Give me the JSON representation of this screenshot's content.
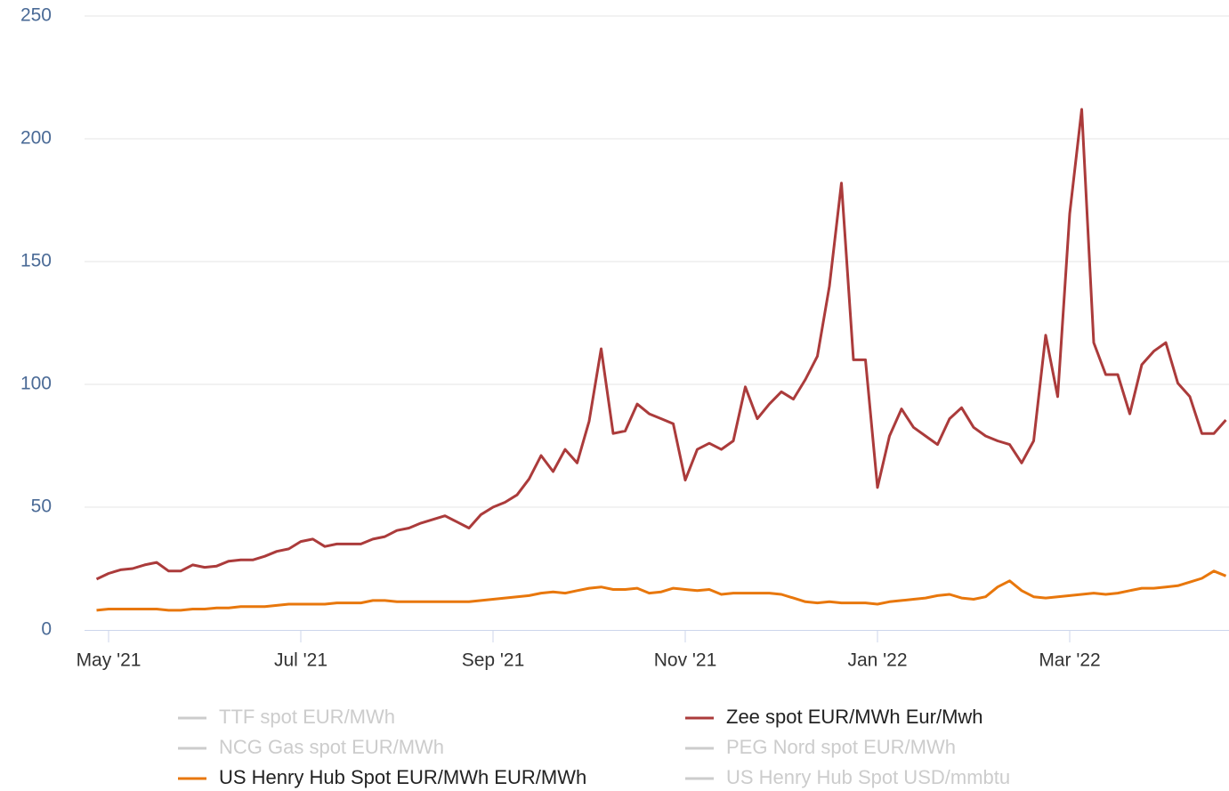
{
  "chart_data": {
    "type": "line",
    "categories": [
      null,
      "May '21",
      null,
      null,
      null,
      null,
      null,
      null,
      null,
      null,
      null,
      null,
      null,
      null,
      null,
      null,
      null,
      "Jul '21",
      null,
      null,
      null,
      null,
      null,
      null,
      null,
      null,
      null,
      null,
      null,
      null,
      null,
      null,
      null,
      "Sep '21",
      null,
      null,
      null,
      null,
      null,
      null,
      null,
      null,
      null,
      null,
      null,
      null,
      null,
      null,
      null,
      "Nov '21",
      null,
      null,
      null,
      null,
      null,
      null,
      null,
      null,
      null,
      null,
      null,
      null,
      null,
      null,
      null,
      "Jan '22",
      null,
      null,
      null,
      null,
      null,
      null,
      null,
      null,
      null,
      null,
      null,
      null,
      null,
      null,
      null,
      "Mar '22",
      null,
      null,
      null,
      null,
      null,
      null,
      null,
      null,
      null,
      null,
      null,
      null,
      null
    ],
    "series": [
      {
        "name": "TTF spot EUR/MWh",
        "visible": false
      },
      {
        "name": "Zee spot EUR/MWh Eur/Mwh",
        "color": "#ab3b3b",
        "visible": true,
        "values": [
          20.7,
          23,
          24.5,
          25,
          26.5,
          27.5,
          24,
          24,
          26.5,
          25.5,
          26,
          28,
          28.5,
          28.5,
          30,
          32,
          33,
          36,
          37,
          34,
          35,
          35,
          35,
          37,
          38,
          40.5,
          41.5,
          43.5,
          45,
          46.5,
          44,
          41.5,
          47,
          50,
          52,
          55,
          61.5,
          71,
          64.5,
          73.5,
          68,
          85,
          114.5,
          80,
          81,
          92,
          88,
          86,
          84,
          61,
          73.5,
          76,
          73.5,
          77,
          99,
          86,
          92,
          97,
          94,
          102,
          111.5,
          140,
          182,
          110,
          110,
          58,
          79,
          90,
          82.5,
          79,
          75.5,
          86,
          90.5,
          82.5,
          79,
          77,
          75.5,
          68,
          77,
          120,
          95,
          169.5,
          212,
          117,
          104,
          104,
          88,
          108,
          113.5,
          117,
          100.5,
          95,
          80,
          80,
          85.5
        ]
      },
      {
        "name": "NCG Gas spot EUR/MWh",
        "visible": false
      },
      {
        "name": "PEG Nord spot EUR/MWh",
        "visible": false
      },
      {
        "name": "US Henry Hub Spot EUR/MWh EUR/MWh",
        "color": "#e8770c",
        "visible": true,
        "values": [
          8,
          8.5,
          8.5,
          8.5,
          8.5,
          8.5,
          8,
          8,
          8.5,
          8.5,
          9,
          9,
          9.5,
          9.5,
          9.5,
          10,
          10.5,
          10.5,
          10.5,
          10.5,
          11,
          11,
          11,
          12,
          12,
          11.5,
          11.5,
          11.5,
          11.5,
          11.5,
          11.5,
          11.5,
          12,
          12.5,
          13,
          13.5,
          14,
          15,
          15.5,
          15,
          16,
          17,
          17.5,
          16.5,
          16.5,
          17,
          15,
          15.5,
          17,
          16.5,
          16,
          16.5,
          14.5,
          15,
          15,
          15,
          15,
          14.5,
          13,
          11.5,
          11,
          11.5,
          11,
          11,
          11,
          10.5,
          11.5,
          12,
          12.5,
          13,
          14,
          14.5,
          13,
          12.5,
          13.5,
          17.5,
          20,
          16,
          13.5,
          13,
          13.5,
          14,
          14.5,
          15,
          14.5,
          15,
          16,
          17,
          17,
          17.5,
          18,
          19.5,
          21,
          24,
          22
        ]
      },
      {
        "name": "US Henry Hub Spot USD/mmbtu",
        "visible": false
      }
    ],
    "ylim": [
      0,
      250
    ],
    "yticks": [
      0,
      50,
      100,
      150,
      200,
      250
    ],
    "grid": true
  }
}
